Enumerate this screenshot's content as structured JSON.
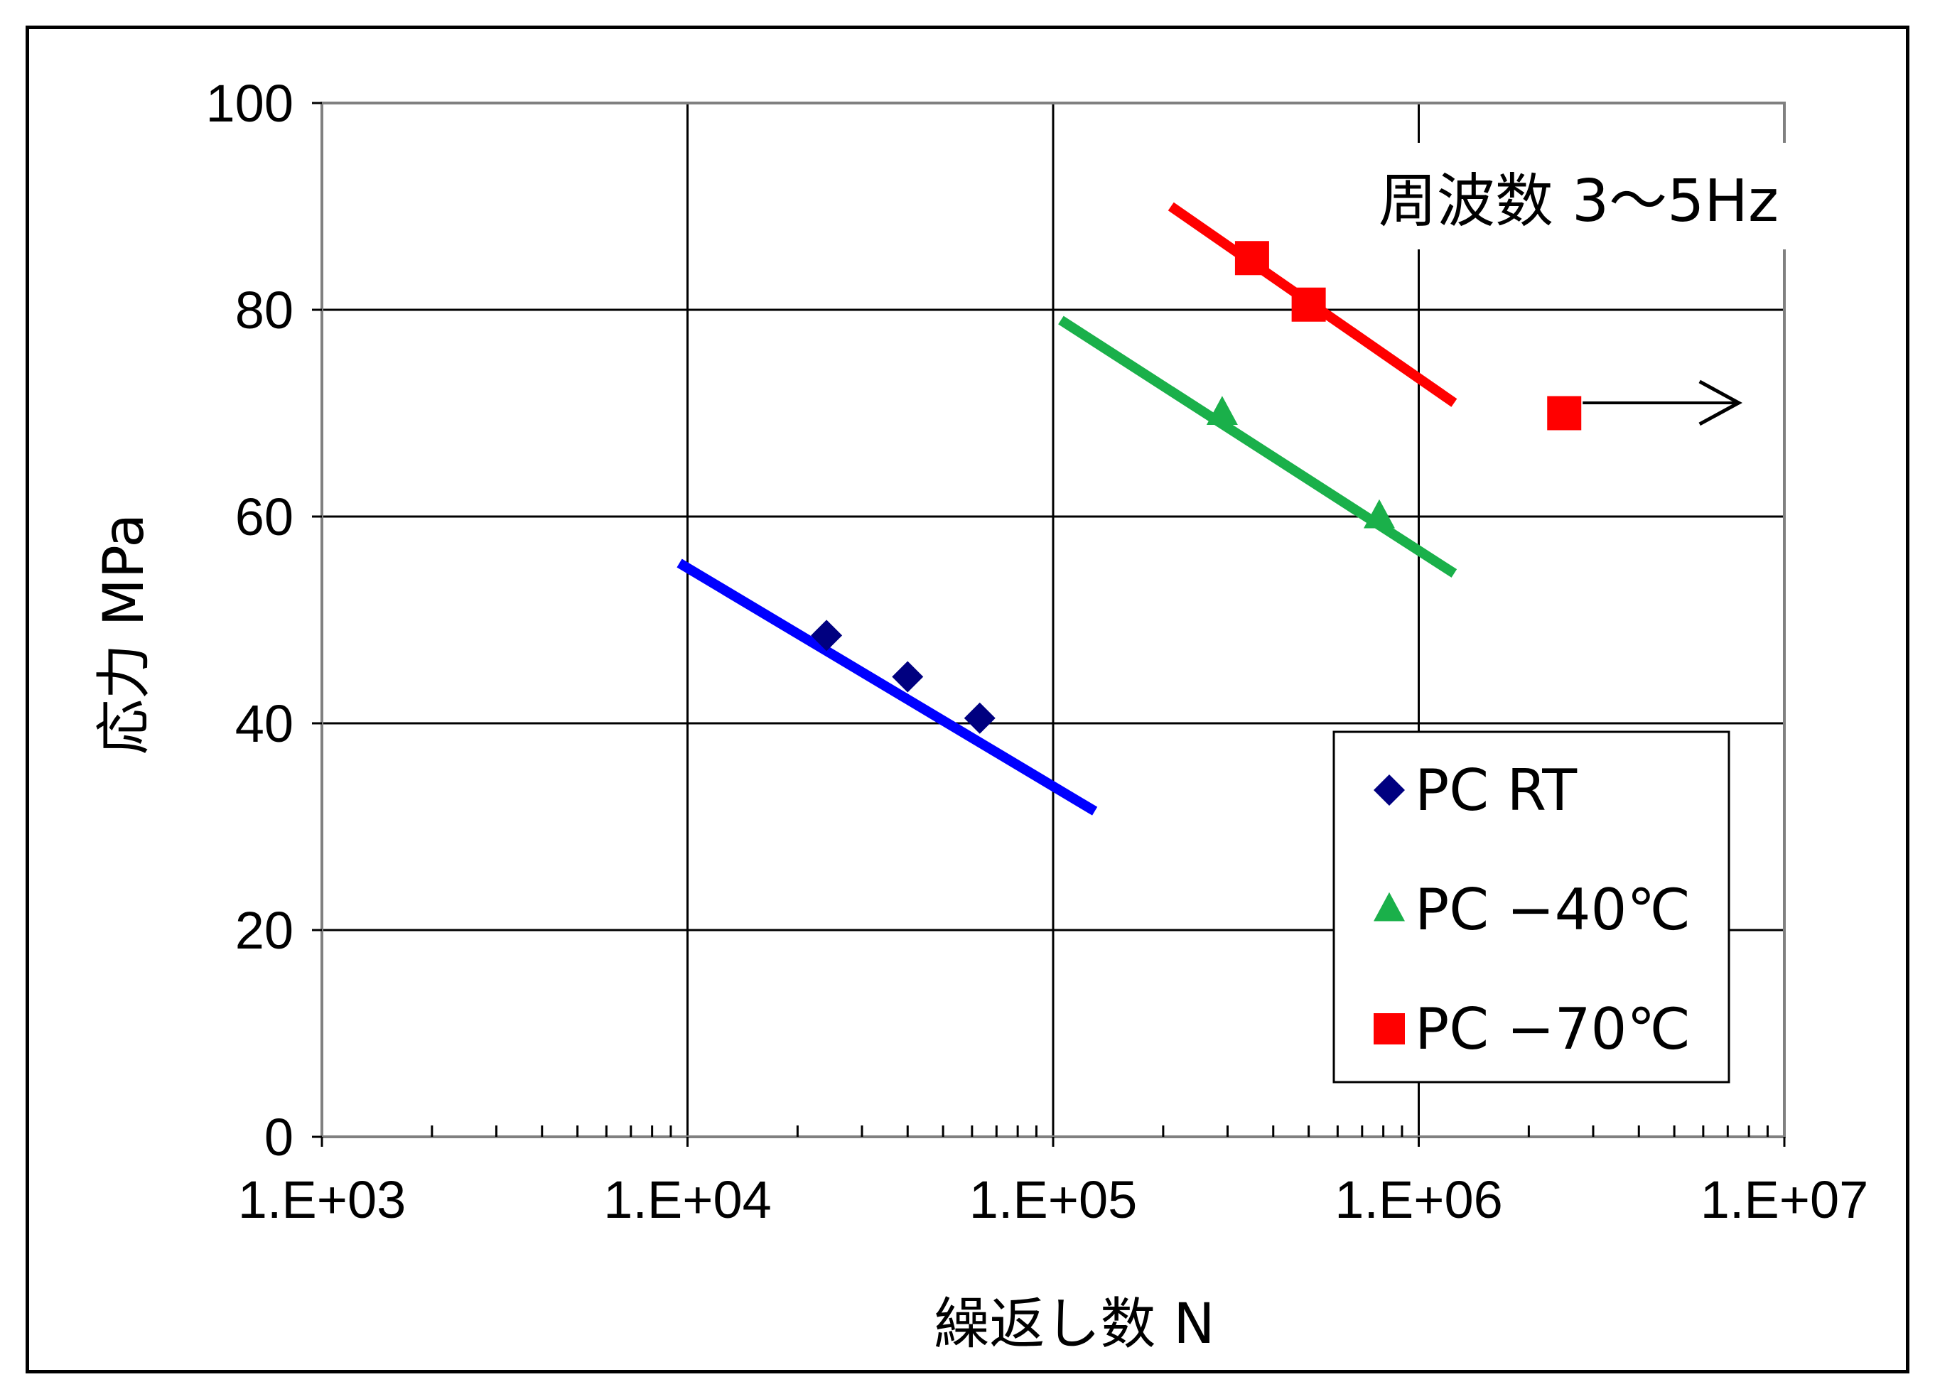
{
  "chart_data": {
    "type": "scatter",
    "x_scale": "log",
    "xlim": [
      1000,
      10000000
    ],
    "ylim": [
      0,
      100
    ],
    "grid": true,
    "xlabel": "繰返し数 N",
    "ylabel": "応力 MPa",
    "x_ticks": [
      1000,
      10000,
      100000,
      1000000,
      10000000
    ],
    "x_tick_labels": [
      "1.E+03",
      "1.E+04",
      "1.E+05",
      "1.E+06",
      "1.E+07"
    ],
    "y_ticks": [
      0,
      20,
      40,
      60,
      80,
      100
    ],
    "y_tick_labels": [
      "0",
      "20",
      "40",
      "60",
      "80",
      "100"
    ],
    "annotation": "周波数 3～5Hz",
    "legend_position": "lower-right",
    "series": [
      {
        "name": "PC RT",
        "marker": "diamond",
        "marker_color": "#000080",
        "line_color": "#0000ff",
        "points": [
          [
            24000,
            48.5
          ],
          [
            40000,
            44.5
          ],
          [
            63000,
            40.5
          ]
        ],
        "trend": [
          [
            9500,
            55.5
          ],
          [
            130000,
            31.5
          ]
        ]
      },
      {
        "name": "PC −40℃",
        "marker": "triangle",
        "marker_color": "#1ab04a",
        "line_color": "#1ab04a",
        "points": [
          [
            290000,
            70
          ],
          [
            780000,
            60
          ]
        ],
        "trend": [
          [
            105000,
            79
          ],
          [
            1250000,
            54.5
          ]
        ]
      },
      {
        "name": "PC −70℃",
        "marker": "square",
        "marker_color": "#ff0000",
        "line_color": "#ff0000",
        "points": [
          [
            350000,
            85
          ],
          [
            500000,
            80.5
          ],
          [
            2500000,
            70
          ]
        ],
        "trend": [
          [
            210000,
            90
          ],
          [
            1250000,
            71
          ]
        ],
        "runout": {
          "from": [
            2500000,
            71
          ],
          "to": [
            7500000,
            71
          ]
        }
      }
    ]
  }
}
